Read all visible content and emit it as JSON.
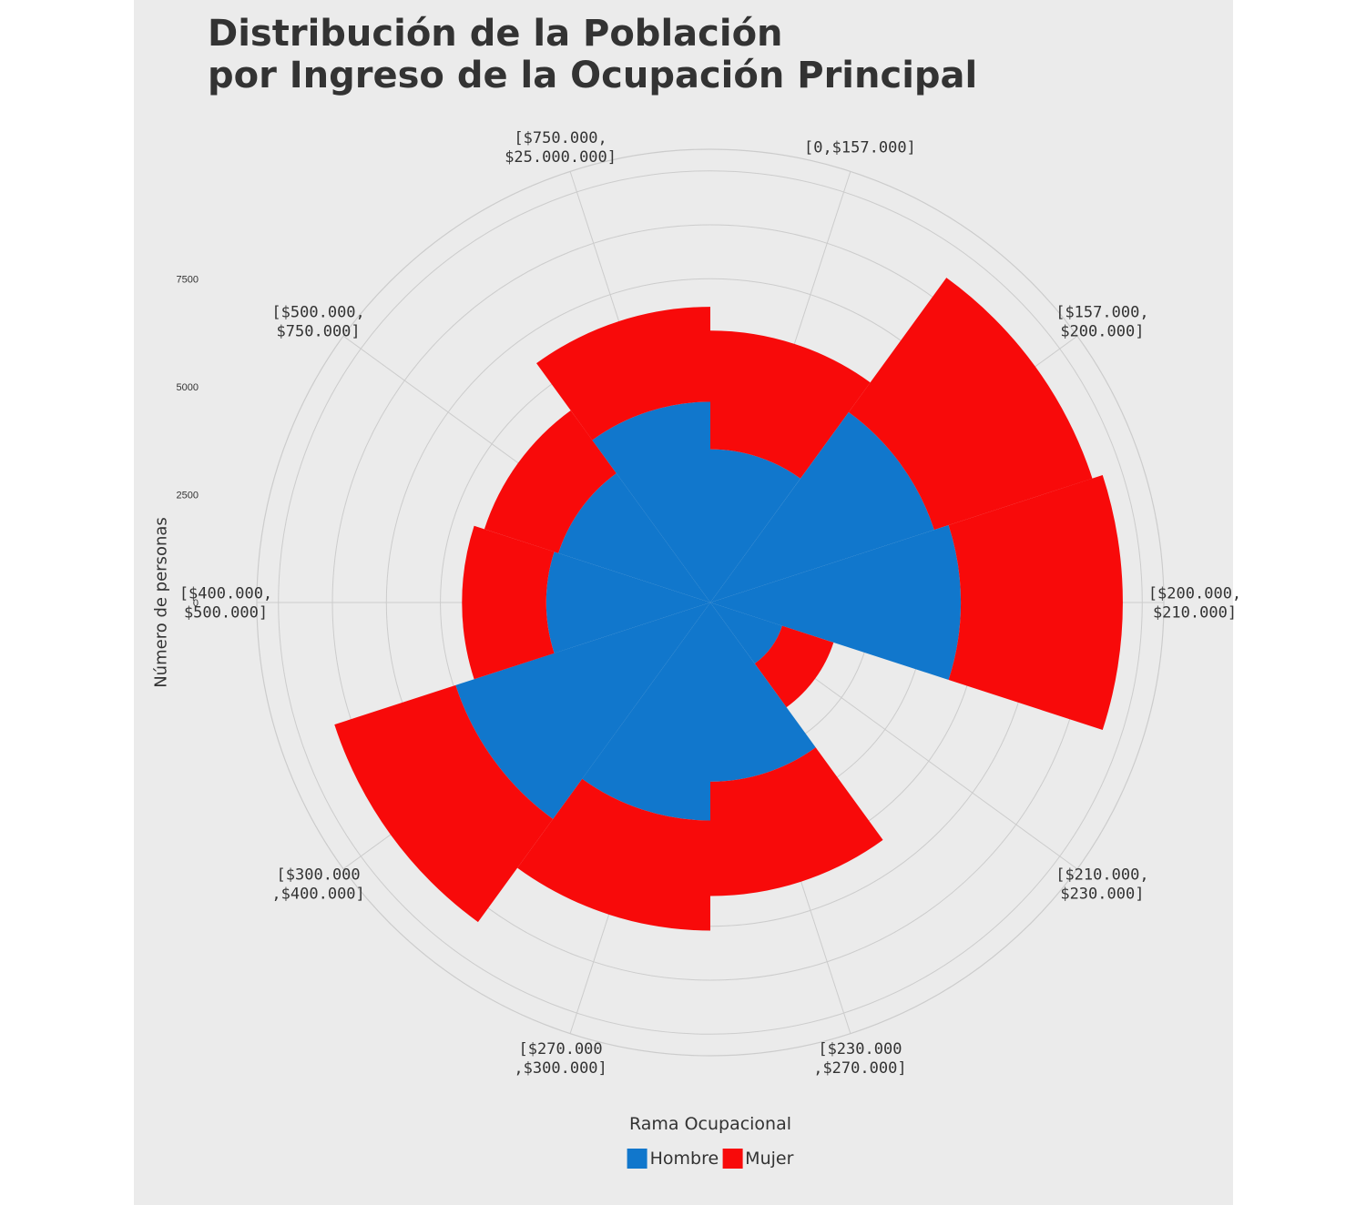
{
  "title": {
    "line1": "Distribución de la Población",
    "line2": "por Ingreso de la Ocupación Principal"
  },
  "colors": {
    "Hombre": "#1177cc",
    "Mujer": "#f80a0a",
    "background": "#ebebeb",
    "grid": "#cccccc"
  },
  "legend": {
    "title": "Rama Ocupacional",
    "items": [
      {
        "label": "Hombre",
        "color": "#1177cc"
      },
      {
        "label": "Mujer",
        "color": "#f80a0a"
      }
    ]
  },
  "chart_data": {
    "type": "polar-stacked-bar",
    "title": "Distribución de la Población por Ingreso de la Ocupación Principal",
    "ylabel": "Número de personas",
    "yticks": [
      0,
      2500,
      5000,
      7500
    ],
    "ylim": [
      0,
      10500
    ],
    "grid": true,
    "legend_position": "bottom",
    "categories": [
      [
        "[0,$157.000]"
      ],
      [
        "[$157.000,",
        "$200.000]"
      ],
      [
        "[$200.000,",
        "$210.000]"
      ],
      [
        "[$210.000,",
        "$230.000]"
      ],
      [
        "[$230.000",
        ",$270.000]"
      ],
      [
        "[$270.000",
        ",$300.000]"
      ],
      [
        "[$300.000",
        ",$400.000]"
      ],
      [
        "[$400.000,",
        "$500.000]"
      ],
      [
        "[$500.000,",
        "$750.000]"
      ],
      [
        "[$750.000,",
        "$25.000.000]"
      ]
    ],
    "series": [
      {
        "name": "Hombre",
        "values": [
          3550,
          5450,
          5800,
          1750,
          4150,
          5050,
          6200,
          3800,
          3700,
          4650
        ]
      },
      {
        "name": "Mujer",
        "values": [
          2750,
          3850,
          3750,
          1250,
          2650,
          2550,
          2950,
          1950,
          1800,
          2200
        ]
      }
    ]
  }
}
